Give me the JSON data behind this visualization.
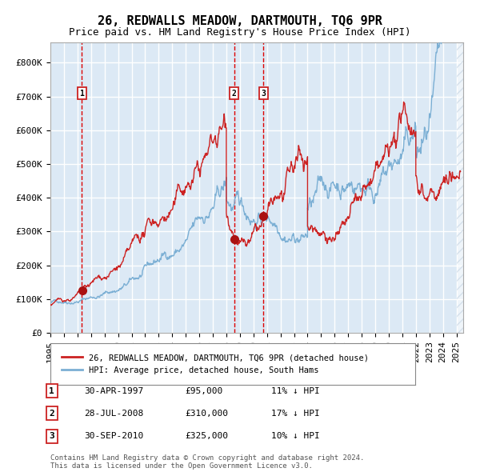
{
  "title": "26, REDWALLS MEADOW, DARTMOUTH, TQ6 9PR",
  "subtitle": "Price paid vs. HM Land Registry's House Price Index (HPI)",
  "background_color": "#dce9f5",
  "plot_bg_color": "#dce9f5",
  "hatch_color": "#c0d0e0",
  "ylim": [
    0,
    860000
  ],
  "xlim_start": 1995.0,
  "xlim_end": 2025.5,
  "yticks": [
    0,
    100000,
    200000,
    300000,
    400000,
    500000,
    600000,
    700000,
    800000
  ],
  "ytick_labels": [
    "£0",
    "£100K",
    "£200K",
    "£300K",
    "£400K",
    "£500K",
    "£600K",
    "£700K",
    "£800K"
  ],
  "xticks": [
    1995,
    1996,
    1997,
    1998,
    1999,
    2000,
    2001,
    2002,
    2003,
    2004,
    2005,
    2006,
    2007,
    2008,
    2009,
    2010,
    2011,
    2012,
    2013,
    2014,
    2015,
    2016,
    2017,
    2018,
    2019,
    2020,
    2021,
    2022,
    2023,
    2024,
    2025
  ],
  "purchases": [
    {
      "label": "1",
      "date_x": 1997.33,
      "price": 95000,
      "date_str": "30-APR-1997",
      "price_str": "£95,000",
      "hpi_str": "11% ↓ HPI"
    },
    {
      "label": "2",
      "date_x": 2008.58,
      "price": 310000,
      "date_str": "28-JUL-2008",
      "price_str": "£310,000",
      "hpi_str": "17% ↓ HPI"
    },
    {
      "label": "3",
      "date_x": 2010.75,
      "price": 325000,
      "date_str": "30-SEP-2010",
      "price_str": "£325,000",
      "hpi_str": "10% ↓ HPI"
    }
  ],
  "hpi_line_color": "#7bafd4",
  "price_line_color": "#cc2222",
  "dot_color": "#aa1111",
  "vline_color": "#dd0000",
  "legend_label_red": "26, REDWALLS MEADOW, DARTMOUTH, TQ6 9PR (detached house)",
  "legend_label_blue": "HPI: Average price, detached house, South Hams",
  "footer": "Contains HM Land Registry data © Crown copyright and database right 2024.\nThis data is licensed under the Open Government Licence v3.0.",
  "grid_color": "#ffffff",
  "title_fontsize": 11,
  "subtitle_fontsize": 9,
  "axis_fontsize": 8
}
